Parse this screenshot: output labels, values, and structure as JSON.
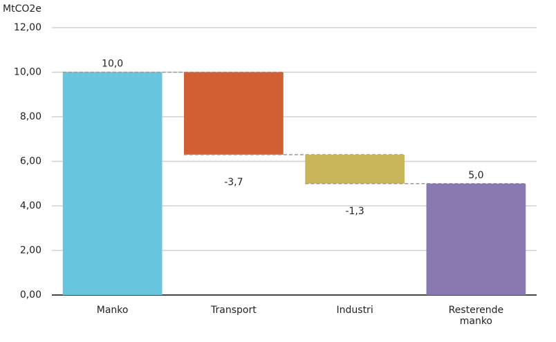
{
  "chart_data": {
    "type": "waterfall",
    "y_axis_label": "MtCO2e",
    "categories": [
      "Manko",
      "Transport",
      "Industri",
      "Resterende manko"
    ],
    "values": [
      10.0,
      -3.7,
      -1.3,
      5.0
    ],
    "value_labels": [
      "10,0",
      "-3,7",
      "-1,3",
      "5,0"
    ],
    "colors": [
      "#67c5de",
      "#d06033",
      "#c9b55a",
      "#8a78b0"
    ],
    "ylim": [
      0,
      12
    ],
    "yticks": [
      {
        "value": 0,
        "label": "0,00"
      },
      {
        "value": 2,
        "label": "2,00"
      },
      {
        "value": 4,
        "label": "4,00"
      },
      {
        "value": 6,
        "label": "6,00"
      },
      {
        "value": 8,
        "label": "8,00"
      },
      {
        "value": 10,
        "label": "10,00"
      },
      {
        "value": 12,
        "label": "12,00"
      }
    ],
    "grid": true
  }
}
